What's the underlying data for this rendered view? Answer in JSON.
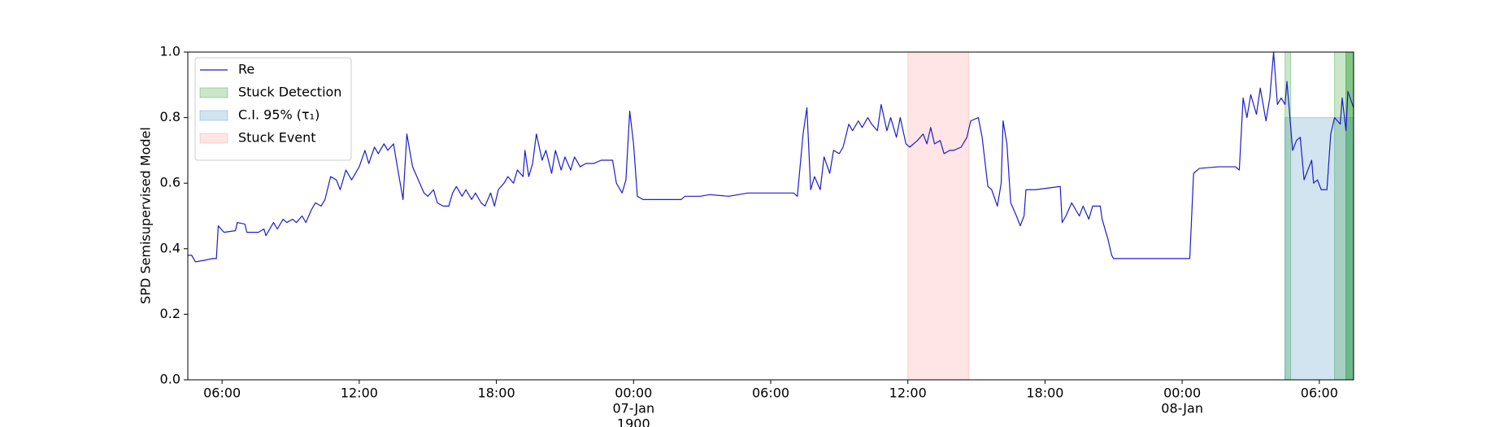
{
  "chart_data": {
    "type": "line",
    "ylabel": "SPD Semisupervised Model",
    "xlim": [
      "1900-01-06 04:30",
      "1900-01-08 07:30"
    ],
    "ylim": [
      0,
      1
    ],
    "yticks": [
      {
        "value": 0,
        "label": "0.0"
      },
      0.2,
      0.4,
      0.6,
      0.8,
      {
        "value": 1,
        "label": "1.0"
      }
    ],
    "xticks": [
      {
        "value": "1900-01-06 06:00",
        "label": [
          "06:00"
        ]
      },
      {
        "value": "1900-01-06 12:00",
        "label": [
          "12:00"
        ]
      },
      {
        "value": "1900-01-06 18:00",
        "label": [
          "18:00"
        ]
      },
      {
        "value": "1900-01-07 00:00",
        "label": [
          "00:00",
          "07-Jan",
          "1900"
        ]
      },
      {
        "value": "1900-01-07 06:00",
        "label": [
          "06:00"
        ]
      },
      {
        "value": "1900-01-07 12:00",
        "label": [
          "12:00"
        ]
      },
      {
        "value": "1900-01-07 18:00",
        "label": [
          "18:00"
        ]
      },
      {
        "value": "1900-01-08 00:00",
        "label": [
          "00:00",
          "08-Jan"
        ]
      },
      {
        "value": "1900-01-08 06:00",
        "label": [
          "06:00"
        ]
      }
    ],
    "grid": false,
    "legend": "upper left",
    "series": [
      {
        "name": "Re",
        "color": "#1c1ccc",
        "x": [
          "1900-01-06 04:30",
          "1900-01-06 04:40",
          "1900-01-06 04:50",
          "1900-01-06 05:15",
          "1900-01-06 05:35",
          "1900-01-06 05:45",
          "1900-01-06 05:50",
          "1900-01-06 06:05",
          "1900-01-06 06:35",
          "1900-01-06 06:40",
          "1900-01-06 07:00",
          "1900-01-06 07:05",
          "1900-01-06 07:35",
          "1900-01-06 07:50",
          "1900-01-06 07:55",
          "1900-01-06 08:15",
          "1900-01-06 08:25",
          "1900-01-06 08:40",
          "1900-01-06 08:50",
          "1900-01-06 09:05",
          "1900-01-06 09:15",
          "1900-01-06 09:30",
          "1900-01-06 09:40",
          "1900-01-06 09:55",
          "1900-01-06 10:05",
          "1900-01-06 10:20",
          "1900-01-06 10:30",
          "1900-01-06 10:45",
          "1900-01-06 11:00",
          "1900-01-06 11:10",
          "1900-01-06 11:25",
          "1900-01-06 11:40",
          "1900-01-06 12:00",
          "1900-01-06 12:15",
          "1900-01-06 12:25",
          "1900-01-06 12:40",
          "1900-01-06 12:50",
          "1900-01-06 13:05",
          "1900-01-06 13:15",
          "1900-01-06 13:30",
          "1900-01-06 13:40",
          "1900-01-06 13:55",
          "1900-01-06 14:05",
          "1900-01-06 14:20",
          "1900-01-06 14:35",
          "1900-01-06 14:50",
          "1900-01-06 15:00",
          "1900-01-06 15:15",
          "1900-01-06 15:25",
          "1900-01-06 15:40",
          "1900-01-06 15:55",
          "1900-01-06 16:05",
          "1900-01-06 16:15",
          "1900-01-06 16:30",
          "1900-01-06 16:40",
          "1900-01-06 16:55",
          "1900-01-06 17:05",
          "1900-01-06 17:20",
          "1900-01-06 17:30",
          "1900-01-06 17:45",
          "1900-01-06 17:55",
          "1900-01-06 18:05",
          "1900-01-06 18:20",
          "1900-01-06 18:30",
          "1900-01-06 18:45",
          "1900-01-06 18:55",
          "1900-01-06 19:10",
          "1900-01-06 19:15",
          "1900-01-06 19:25",
          "1900-01-06 19:35",
          "1900-01-06 19:45",
          "1900-01-06 20:00",
          "1900-01-06 20:10",
          "1900-01-06 20:25",
          "1900-01-06 20:35",
          "1900-01-06 20:50",
          "1900-01-06 21:00",
          "1900-01-06 21:15",
          "1900-01-06 21:25",
          "1900-01-06 21:40",
          "1900-01-06 21:55",
          "1900-01-06 22:15",
          "1900-01-06 22:35",
          "1900-01-06 22:55",
          "1900-01-06 23:05",
          "1900-01-06 23:15",
          "1900-01-06 23:30",
          "1900-01-06 23:40",
          "1900-01-06 23:50",
          "1900-01-07 00:00",
          "1900-01-07 00:10",
          "1900-01-07 00:25",
          "1900-01-07 01:40",
          "1900-01-07 02:05",
          "1900-01-07 02:15",
          "1900-01-07 02:55",
          "1900-01-07 03:20",
          "1900-01-07 04:10",
          "1900-01-07 05:00",
          "1900-01-07 05:50",
          "1900-01-07 07:00",
          "1900-01-07 07:10",
          "1900-01-07 07:25",
          "1900-01-07 07:35",
          "1900-01-07 07:45",
          "1900-01-07 07:55",
          "1900-01-07 08:10",
          "1900-01-07 08:20",
          "1900-01-07 08:35",
          "1900-01-07 08:45",
          "1900-01-07 09:00",
          "1900-01-07 09:10",
          "1900-01-07 09:25",
          "1900-01-07 09:35",
          "1900-01-07 09:50",
          "1900-01-07 10:00",
          "1900-01-07 10:15",
          "1900-01-07 10:25",
          "1900-01-07 10:40",
          "1900-01-07 10:50",
          "1900-01-07 11:05",
          "1900-01-07 11:15",
          "1900-01-07 11:30",
          "1900-01-07 11:40",
          "1900-01-07 11:55",
          "1900-01-07 12:05",
          "1900-01-07 12:25",
          "1900-01-07 12:40",
          "1900-01-07 12:50",
          "1900-01-07 13:00",
          "1900-01-07 13:10",
          "1900-01-07 13:25",
          "1900-01-07 13:35",
          "1900-01-07 13:50",
          "1900-01-07 14:00",
          "1900-01-07 14:20",
          "1900-01-07 14:35",
          "1900-01-07 14:45",
          "1900-01-07 15:05",
          "1900-01-07 15:15",
          "1900-01-07 15:30",
          "1900-01-07 15:40",
          "1900-01-07 15:55",
          "1900-01-07 16:05",
          "1900-01-07 16:10",
          "1900-01-07 16:20",
          "1900-01-07 16:30",
          "1900-01-07 16:45",
          "1900-01-07 16:55",
          "1900-01-07 17:05",
          "1900-01-07 17:10",
          "1900-01-07 17:35",
          "1900-01-07 18:40",
          "1900-01-07 18:45",
          "1900-01-07 18:55",
          "1900-01-07 19:10",
          "1900-01-07 19:15",
          "1900-01-07 19:30",
          "1900-01-07 19:40",
          "1900-01-07 19:55",
          "1900-01-07 20:05",
          "1900-01-07 20:25",
          "1900-01-07 20:30",
          "1900-01-07 20:45",
          "1900-01-07 20:55",
          "1900-01-07 21:00",
          "1900-01-07 22:35",
          "1900-01-08 00:20",
          "1900-01-08 00:30",
          "1900-01-08 00:45",
          "1900-01-08 01:35",
          "1900-01-08 02:20",
          "1900-01-08 02:30",
          "1900-01-08 02:40",
          "1900-01-08 02:50",
          "1900-01-08 03:00",
          "1900-01-08 03:15",
          "1900-01-08 03:25",
          "1900-01-08 03:40",
          "1900-01-08 03:50",
          "1900-01-08 04:00",
          "1900-01-08 04:10",
          "1900-01-08 04:20",
          "1900-01-08 04:30",
          "1900-01-08 04:35",
          "1900-01-08 04:50",
          "1900-01-08 05:00",
          "1900-01-08 05:10",
          "1900-01-08 05:20",
          "1900-01-08 05:30",
          "1900-01-08 05:40",
          "1900-01-08 05:45",
          "1900-01-08 05:55",
          "1900-01-08 06:05",
          "1900-01-08 06:20",
          "1900-01-08 06:30",
          "1900-01-08 06:40",
          "1900-01-08 06:55",
          "1900-01-08 07:00",
          "1900-01-08 07:10",
          "1900-01-08 07:15",
          "1900-01-08 07:30"
        ],
        "values": [
          0.38,
          0.38,
          0.36,
          0.365,
          0.37,
          0.37,
          0.47,
          0.45,
          0.455,
          0.48,
          0.475,
          0.45,
          0.45,
          0.46,
          0.44,
          0.48,
          0.46,
          0.49,
          0.48,
          0.49,
          0.48,
          0.5,
          0.48,
          0.52,
          0.54,
          0.53,
          0.55,
          0.62,
          0.61,
          0.58,
          0.64,
          0.61,
          0.65,
          0.7,
          0.66,
          0.71,
          0.69,
          0.72,
          0.7,
          0.72,
          0.65,
          0.55,
          0.75,
          0.65,
          0.61,
          0.57,
          0.56,
          0.58,
          0.54,
          0.53,
          0.53,
          0.57,
          0.59,
          0.56,
          0.58,
          0.55,
          0.57,
          0.54,
          0.53,
          0.57,
          0.53,
          0.58,
          0.6,
          0.62,
          0.6,
          0.64,
          0.62,
          0.7,
          0.62,
          0.66,
          0.75,
          0.67,
          0.7,
          0.63,
          0.7,
          0.64,
          0.68,
          0.64,
          0.68,
          0.65,
          0.66,
          0.66,
          0.67,
          0.67,
          0.67,
          0.6,
          0.57,
          0.61,
          0.82,
          0.72,
          0.56,
          0.55,
          0.55,
          0.55,
          0.56,
          0.56,
          0.565,
          0.56,
          0.57,
          0.57,
          0.57,
          0.56,
          0.75,
          0.83,
          0.58,
          0.62,
          0.58,
          0.68,
          0.63,
          0.7,
          0.69,
          0.71,
          0.78,
          0.76,
          0.79,
          0.77,
          0.8,
          0.78,
          0.76,
          0.84,
          0.76,
          0.8,
          0.74,
          0.8,
          0.72,
          0.71,
          0.73,
          0.75,
          0.72,
          0.77,
          0.72,
          0.73,
          0.69,
          0.7,
          0.7,
          0.71,
          0.74,
          0.79,
          0.8,
          0.74,
          0.59,
          0.58,
          0.53,
          0.6,
          0.79,
          0.72,
          0.54,
          0.5,
          0.47,
          0.5,
          0.58,
          0.58,
          0.59,
          0.48,
          0.5,
          0.54,
          0.53,
          0.5,
          0.53,
          0.49,
          0.53,
          0.53,
          0.49,
          0.43,
          0.38,
          0.37,
          0.37,
          0.37,
          0.63,
          0.645,
          0.65,
          0.65,
          0.64,
          0.86,
          0.8,
          0.87,
          0.81,
          0.89,
          0.79,
          0.86,
          1.0,
          0.84,
          0.86,
          0.84,
          0.91,
          0.7,
          0.73,
          0.74,
          0.61,
          0.64,
          0.67,
          0.6,
          0.61,
          0.58,
          0.58,
          0.75,
          0.8,
          0.78,
          0.86,
          0.76,
          0.88,
          0.83
        ]
      }
    ],
    "spans": [
      {
        "name": "Stuck Detection",
        "color": "#2ca02c",
        "opacity": 0.25,
        "ranges": [
          [
            "1900-01-08 04:30",
            "1900-01-08 04:45"
          ],
          [
            "1900-01-08 06:40",
            "1900-01-08 07:30"
          ],
          [
            "1900-01-08 07:10",
            "1900-01-08 07:30"
          ],
          [
            "1900-01-08 07:10",
            "1900-01-08 07:30"
          ]
        ],
        "y_range": [
          0,
          1
        ]
      },
      {
        "name": "C.I. 95% (τ₁)",
        "color": "#1f77b4",
        "opacity": 0.2,
        "ranges": [
          [
            "1900-01-08 04:30",
            "1900-01-08 07:30"
          ]
        ],
        "y_range": [
          0,
          0.8
        ]
      },
      {
        "name": "Stuck Event",
        "color": "#ff0000",
        "opacity": 0.1,
        "ranges": [
          [
            "1900-01-07 12:00",
            "1900-01-07 14:40"
          ]
        ],
        "y_range": [
          0,
          1
        ]
      }
    ]
  }
}
